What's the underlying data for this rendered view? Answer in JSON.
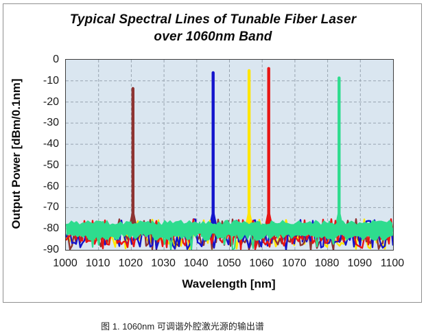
{
  "figure": {
    "title_line1": "Typical Spectral Lines of Tunable  Fiber Laser",
    "title_line2": "over 1060nm Band",
    "caption": "图 1. 1060nm 可调谐外腔激光源的输出谱"
  },
  "chart_data": {
    "type": "line",
    "title": "Typical Spectral Lines of Tunable Fiber Laser over 1060nm Band",
    "xlabel": "Wavelength [nm]",
    "ylabel": "Output Power [dBm/0.1nm]",
    "xlim": [
      1000,
      1100
    ],
    "ylim": [
      -90,
      0
    ],
    "x_ticks": [
      1000,
      1010,
      1020,
      1030,
      1040,
      1050,
      1060,
      1070,
      1080,
      1090,
      1100
    ],
    "y_ticks": [
      0,
      -10,
      -20,
      -30,
      -40,
      -50,
      -60,
      -70,
      -80,
      -90
    ],
    "grid": true,
    "legend": "none",
    "plot_bg_color": "#DAE6F0",
    "gridline_color": "#97A3AF",
    "noise": {
      "band_top_dbm": -76,
      "band_bottom_dbm": -90,
      "typical_floor_dbm": -81
    },
    "series": [
      {
        "name": "laser-line-1020nm",
        "color": "#8E3432",
        "peak_wavelength_nm": 1020.5,
        "peak_power_dbm": -13
      },
      {
        "name": "laser-line-1045nm",
        "color": "#1414CC",
        "peak_wavelength_nm": 1045,
        "peak_power_dbm": -5.5
      },
      {
        "name": "laser-line-1056nm",
        "color": "#FFE600",
        "peak_wavelength_nm": 1056,
        "peak_power_dbm": -4.5
      },
      {
        "name": "laser-line-1062nm",
        "color": "#E81414",
        "peak_wavelength_nm": 1062,
        "peak_power_dbm": -3.5
      },
      {
        "name": "laser-line-1084nm",
        "color": "#2EDC8E",
        "peak_wavelength_nm": 1083.5,
        "peak_power_dbm": -8
      }
    ]
  }
}
